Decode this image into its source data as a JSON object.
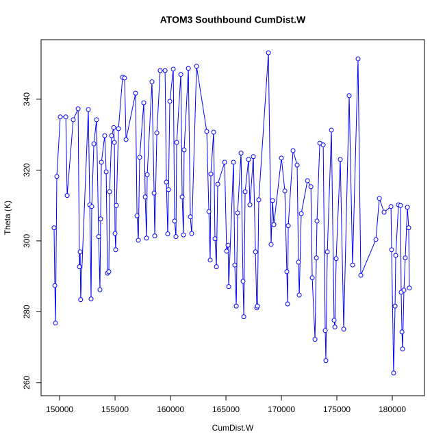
{
  "chart_data": {
    "type": "line",
    "title": "ATOM3 Southbound CumDist.W",
    "x_label": "CumDist.W",
    "y_label": "Theta (K)",
    "color": "#0000ff",
    "markers": true,
    "x": [
      149500,
      149570,
      149630,
      149750,
      150060,
      150560,
      150680,
      151230,
      151670,
      151790,
      151850,
      151900,
      152590,
      152720,
      152840,
      152900,
      153090,
      153330,
      153520,
      153640,
      153700,
      153770,
      154070,
      154200,
      154320,
      154440,
      154510,
      154690,
      154880,
      154940,
      155000,
      155060,
      155120,
      155310,
      155680,
      155860,
      155990,
      156850,
      156980,
      157100,
      157220,
      157590,
      157720,
      157840,
      157900,
      158330,
      158520,
      158580,
      158770,
      159070,
      159510,
      159630,
      159750,
      159820,
      159940,
      160250,
      160370,
      160490,
      160560,
      160930,
      161050,
      161170,
      161230,
      161610,
      161790,
      161910,
      162350,
      163270,
      163460,
      163580,
      163640,
      163890,
      164010,
      164140,
      164260,
      164880,
      165060,
      165190,
      165250,
      165680,
      165800,
      165930,
      166050,
      166360,
      166540,
      166610,
      166730,
      167040,
      167160,
      167470,
      167660,
      167780,
      167840,
      167960,
      168830,
      169070,
      169200,
      169320,
      170000,
      170310,
      170490,
      170560,
      170620,
      171050,
      171420,
      171540,
      171610,
      171790,
      172350,
      172660,
      172780,
      173030,
      173150,
      173210,
      173460,
      173770,
      173950,
      174010,
      174140,
      174510,
      174750,
      174820,
      174940,
      175310,
      175620,
      176110,
      176420,
      176910,
      177160,
      178520,
      178830,
      179260,
      179880,
      179940,
      180120,
      180250,
      180310,
      180560,
      180740,
      180800,
      180870,
      180930,
      181050,
      181170,
      181360,
      181480,
      181540
    ],
    "values": [
      303.7,
      287.4,
      276.8,
      318.2,
      335,
      335,
      312.8,
      334.2,
      337.3,
      292.7,
      296.9,
      283.4,
      337.1,
      310.2,
      283.6,
      309.7,
      327.4,
      334.2,
      301.2,
      286.2,
      306.2,
      322.2,
      329.7,
      319.5,
      290.9,
      291.3,
      313.9,
      329.7,
      332,
      327.8,
      302.1,
      297.5,
      310,
      331.7,
      346.2,
      346,
      328.6,
      341.7,
      307.1,
      300.2,
      323.6,
      339,
      312.4,
      300.8,
      318.7,
      344.9,
      313.5,
      301.4,
      330.5,
      348.1,
      348.1,
      316.6,
      302,
      314.5,
      339.4,
      348.5,
      305.6,
      301.2,
      327.8,
      347,
      312.4,
      301.7,
      325.7,
      348.7,
      306.8,
      302.1,
      349.3,
      330.9,
      308.3,
      294.6,
      318.9,
      330.7,
      300.6,
      292.7,
      316,
      322.2,
      297.1,
      298.8,
      287.1,
      322.2,
      293.2,
      281.6,
      307.9,
      324.8,
      288.6,
      278.6,
      313.9,
      323,
      310.2,
      323.8,
      296.9,
      281.1,
      281.6,
      311.6,
      353.1,
      299,
      311.4,
      304.6,
      323.4,
      314.1,
      291.3,
      282.2,
      304.3,
      325.5,
      321.4,
      294,
      284.7,
      307.7,
      317,
      315.3,
      289.6,
      272.2,
      295.2,
      305.6,
      327.6,
      327.1,
      274.7,
      266.2,
      296.9,
      331.3,
      277.6,
      275.7,
      295,
      323,
      275.1,
      341,
      293.2,
      351.4,
      290.3,
      300.4,
      312,
      308.1,
      309.7,
      297.5,
      262.7,
      281.6,
      295.9,
      310.2,
      310,
      285.5,
      274.3,
      269.5,
      286.1,
      295.2,
      309.5,
      303.7,
      286.7
    ],
    "xlim": [
      148330,
      182900
    ],
    "ylim": [
      256.3,
      356.8
    ],
    "xticks": [
      150000,
      155000,
      160000,
      165000,
      170000,
      175000,
      180000
    ],
    "yticks": [
      260,
      280,
      300,
      320,
      340
    ]
  }
}
